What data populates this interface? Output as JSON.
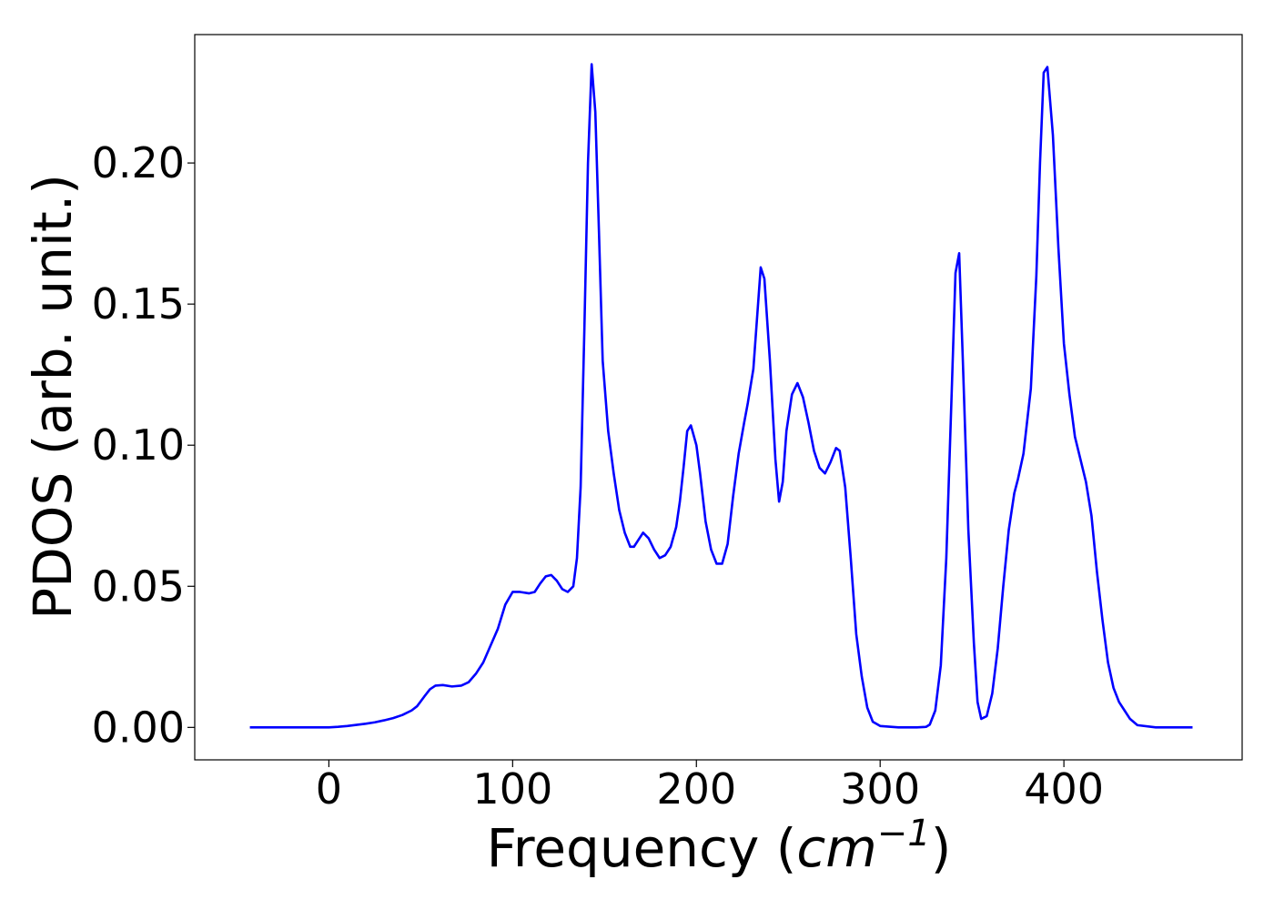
{
  "chart_data": {
    "type": "line",
    "title": "",
    "xlabel": "Frequency (",
    "xlabel_math": "cm",
    "xlabel_sup": "−1",
    "xlabel_close": ")",
    "ylabel": "PDOS (arb. unit.)",
    "xlim": [
      -73,
      497
    ],
    "ylim": [
      -0.0115,
      0.2455
    ],
    "xticks": [
      0,
      100,
      200,
      300,
      400
    ],
    "xtick_labels": [
      "0",
      "100",
      "200",
      "300",
      "400"
    ],
    "yticks": [
      0.0,
      0.05,
      0.1,
      0.15,
      0.2
    ],
    "ytick_labels": [
      "0.00",
      "0.05",
      "0.10",
      "0.15",
      "0.20"
    ],
    "grid": false,
    "legend": "none",
    "series": [
      {
        "color": "#0000ff",
        "x": [
          -43,
          -20,
          0,
          5,
          10,
          15,
          20,
          25,
          30,
          35,
          40,
          45,
          48,
          52,
          55,
          58,
          62,
          67,
          72,
          76,
          80,
          84,
          88,
          92,
          96,
          100,
          104,
          109,
          112,
          115,
          118,
          121,
          124,
          127,
          130,
          133,
          135,
          137,
          139,
          141,
          143,
          145,
          147,
          149,
          152,
          155,
          158,
          161,
          164,
          166,
          169,
          171,
          174,
          177,
          180,
          183,
          186,
          189,
          191,
          193,
          195,
          197,
          200,
          202,
          205,
          208,
          211,
          214,
          217,
          220,
          223,
          226,
          228,
          231,
          233,
          235,
          237,
          240,
          243,
          245,
          247,
          249,
          252,
          255,
          258,
          261,
          264,
          267,
          270,
          273,
          276,
          278,
          281,
          284,
          287,
          290,
          293,
          296,
          300,
          310,
          320,
          325,
          327,
          330,
          333,
          336,
          339,
          341,
          343,
          345,
          348,
          351,
          353,
          355,
          358,
          361,
          364,
          367,
          370,
          373,
          375,
          378,
          382,
          385,
          387,
          389,
          391,
          394,
          397,
          400,
          403,
          406,
          409,
          412,
          415,
          418,
          421,
          424,
          427,
          430,
          433,
          436,
          440,
          450,
          470
        ],
        "y": [
          0,
          0,
          0,
          0.0002,
          0.0005,
          0.0009,
          0.0013,
          0.0018,
          0.0025,
          0.0033,
          0.0044,
          0.006,
          0.0075,
          0.011,
          0.0135,
          0.0148,
          0.015,
          0.0145,
          0.0148,
          0.016,
          0.019,
          0.023,
          0.029,
          0.035,
          0.0435,
          0.048,
          0.048,
          0.0475,
          0.048,
          0.051,
          0.0535,
          0.054,
          0.052,
          0.049,
          0.048,
          0.05,
          0.06,
          0.085,
          0.14,
          0.2,
          0.235,
          0.218,
          0.175,
          0.13,
          0.105,
          0.09,
          0.077,
          0.069,
          0.064,
          0.064,
          0.067,
          0.069,
          0.067,
          0.063,
          0.06,
          0.061,
          0.064,
          0.071,
          0.08,
          0.092,
          0.105,
          0.107,
          0.1,
          0.09,
          0.073,
          0.063,
          0.058,
          0.058,
          0.065,
          0.082,
          0.097,
          0.108,
          0.115,
          0.127,
          0.145,
          0.163,
          0.159,
          0.13,
          0.095,
          0.08,
          0.087,
          0.105,
          0.118,
          0.122,
          0.117,
          0.108,
          0.098,
          0.092,
          0.09,
          0.094,
          0.099,
          0.098,
          0.085,
          0.06,
          0.033,
          0.018,
          0.007,
          0.002,
          0.0005,
          0,
          0,
          0.0002,
          0.001,
          0.006,
          0.022,
          0.06,
          0.12,
          0.161,
          0.168,
          0.13,
          0.07,
          0.03,
          0.009,
          0.003,
          0.004,
          0.012,
          0.028,
          0.05,
          0.07,
          0.083,
          0.088,
          0.097,
          0.12,
          0.16,
          0.2,
          0.232,
          0.234,
          0.21,
          0.17,
          0.136,
          0.118,
          0.103,
          0.095,
          0.087,
          0.075,
          0.055,
          0.038,
          0.023,
          0.014,
          0.009,
          0.006,
          0.003,
          0.0008,
          0,
          0
        ]
      }
    ]
  }
}
